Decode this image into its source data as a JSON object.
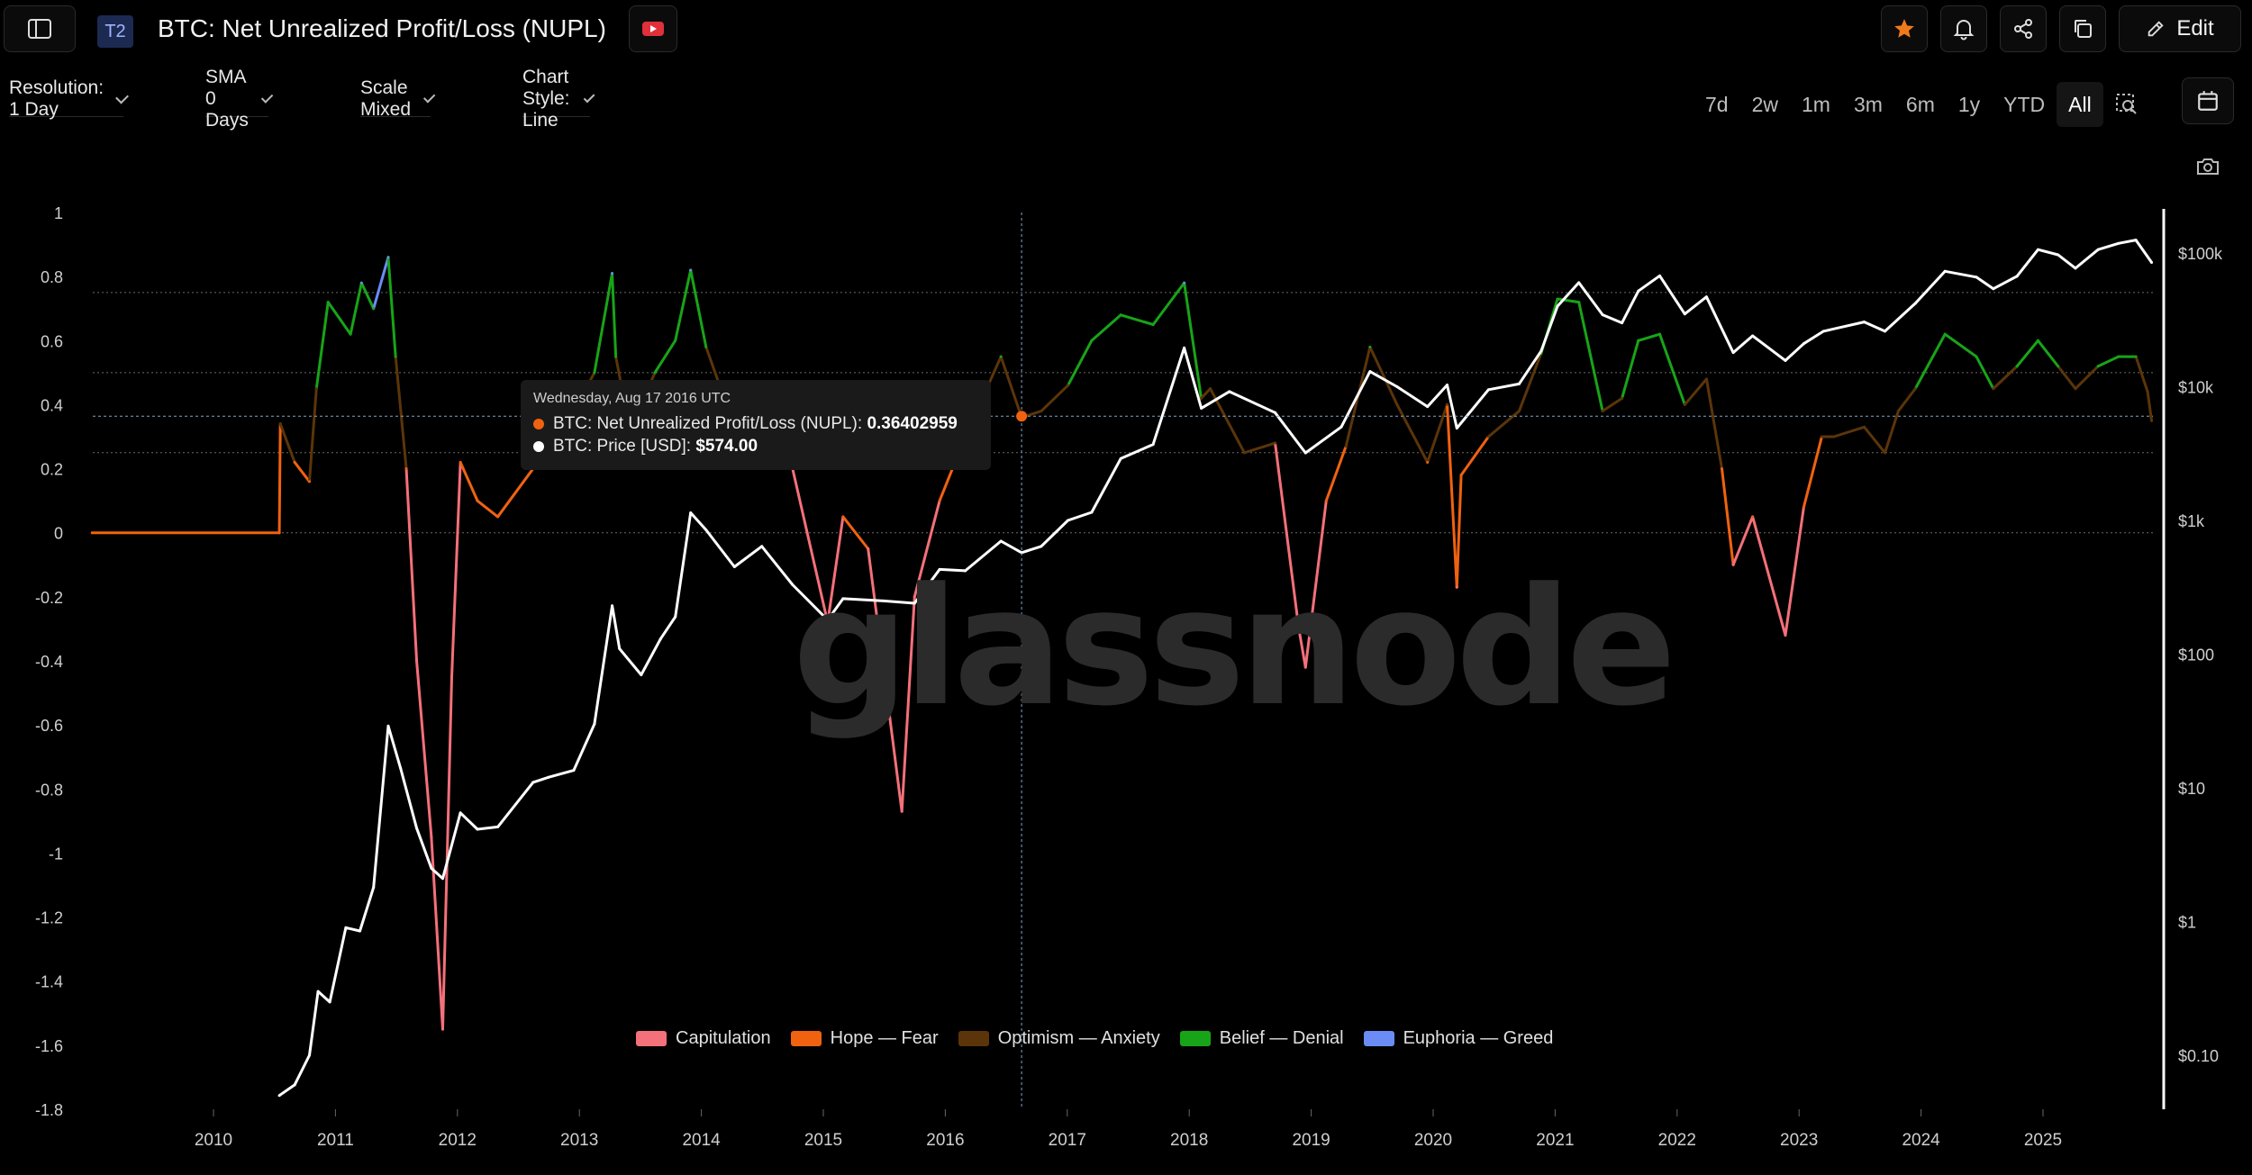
{
  "header": {
    "badge": "T2",
    "title": "BTC: Net Unrealized Profit/Loss (NUPL)",
    "edit_label": "Edit"
  },
  "controls": {
    "resolution": "Resolution: 1 Day",
    "sma": "SMA 0 Days",
    "scale": "Scale Mixed",
    "chart_style": "Chart Style: Line"
  },
  "ranges": [
    "7d",
    "2w",
    "1m",
    "3m",
    "6m",
    "1y",
    "YTD",
    "All"
  ],
  "active_range": "All",
  "watermark": "glassnode",
  "tooltip": {
    "date": "Wednesday, Aug 17 2016 UTC",
    "series1_label": "BTC: Net Unrealized Profit/Loss (NUPL): ",
    "series1_value": "0.36402959",
    "series2_label": "BTC: Price [USD]: ",
    "series2_value": "$574.00"
  },
  "colors": {
    "capitulation": "#f4707a",
    "hope_fear": "#f0620f",
    "optimism_anxiety": "#5b3509",
    "belief_denial": "#18a418",
    "euphoria_greed": "#6b8cf5",
    "price": "#ffffff"
  },
  "chart_data": {
    "type": "line",
    "left_axis": {
      "ticks": [
        1,
        0.8,
        0.6,
        0.4,
        0.2,
        0,
        -0.2,
        -0.4,
        -0.6,
        -0.8,
        -1,
        -1.2,
        -1.4,
        -1.6,
        -1.8
      ],
      "ylim": [
        -1.8,
        1
      ]
    },
    "right_axis": {
      "scale": "log",
      "ticks": [
        "$100k",
        "$10k",
        "$1k",
        "$100",
        "$10",
        "$1",
        "$0.10"
      ],
      "tick_values": [
        100000,
        10000,
        1000,
        100,
        10,
        1,
        0.1
      ]
    },
    "x_ticks": [
      "2010",
      "2011",
      "2012",
      "2013",
      "2014",
      "2015",
      "2016",
      "2017",
      "2018",
      "2019",
      "2020",
      "2021",
      "2022",
      "2023",
      "2024",
      "2025"
    ],
    "legend": [
      "Capitulation",
      "Hope — Fear",
      "Optimism — Anxiety",
      "Belief — Denial",
      "Euphoria — Greed"
    ],
    "zones": [
      {
        "name": "Capitulation",
        "range": [
          -1.8,
          0
        ]
      },
      {
        "name": "Hope — Fear",
        "range": [
          0,
          0.25
        ]
      },
      {
        "name": "Optimism — Anxiety",
        "range": [
          0.25,
          0.5
        ]
      },
      {
        "name": "Belief — Denial",
        "range": [
          0.5,
          0.75
        ]
      },
      {
        "name": "Euphoria — Greed",
        "range": [
          0.75,
          1
        ]
      }
    ],
    "series": [
      {
        "name": "BTC: Net Unrealized Profit/Loss (NUPL)",
        "x": [
          "2009-01-03",
          "2010-07-17",
          "2010-07-20",
          "2010-09-01",
          "2010-10-15",
          "2010-11-05",
          "2010-12-10",
          "2011-02-15",
          "2011-03-20",
          "2011-04-25",
          "2011-06-08",
          "2011-06-30",
          "2011-08-01",
          "2011-09-01",
          "2011-10-15",
          "2011-11-18",
          "2011-12-15",
          "2012-01-10",
          "2012-03-01",
          "2012-05-01",
          "2012-08-15",
          "2012-10-01",
          "2012-12-15",
          "2013-02-15",
          "2013-04-09",
          "2013-04-20",
          "2013-06-01",
          "2013-08-15",
          "2013-10-15",
          "2013-11-30",
          "2014-01-15",
          "2014-04-10",
          "2014-07-01",
          "2014-10-01",
          "2015-01-14",
          "2015-03-01",
          "2015-05-15",
          "2015-08-24",
          "2015-10-01",
          "2015-12-15",
          "2016-03-01",
          "2016-06-16",
          "2016-08-17",
          "2016-10-15",
          "2017-01-03",
          "2017-03-15",
          "2017-06-10",
          "2017-09-15",
          "2017-12-17",
          "2018-02-06",
          "2018-03-05",
          "2018-06-15",
          "2018-09-15",
          "2018-11-25",
          "2018-12-15",
          "2019-02-15",
          "2019-04-15",
          "2019-06-26",
          "2019-09-15",
          "2019-12-15",
          "2020-02-12",
          "2020-03-12",
          "2020-03-25",
          "2020-06-15",
          "2020-09-15",
          "2020-11-20",
          "2021-01-08",
          "2021-03-13",
          "2021-05-23",
          "2021-07-20",
          "2021-09-07",
          "2021-11-10",
          "2022-01-24",
          "2022-03-30",
          "2022-05-15",
          "2022-06-18",
          "2022-08-15",
          "2022-11-21",
          "2023-01-15",
          "2023-03-10",
          "2023-04-15",
          "2023-07-15",
          "2023-09-15",
          "2023-10-25",
          "2023-12-15",
          "2024-03-13",
          "2024-06-15",
          "2024-08-05",
          "2024-10-15",
          "2024-12-17",
          "2025-02-15",
          "2025-04-08",
          "2025-06-15",
          "2025-08-15",
          "2025-10-06",
          "2025-11-10",
          "2025-11-22"
        ],
        "values": [
          0,
          0,
          0.34,
          0.22,
          0.16,
          0.45,
          0.72,
          0.62,
          0.78,
          0.7,
          0.86,
          0.55,
          0.2,
          -0.4,
          -0.95,
          -1.55,
          -0.45,
          0.22,
          0.1,
          0.05,
          0.2,
          0.28,
          0.38,
          0.5,
          0.81,
          0.55,
          0.32,
          0.5,
          0.6,
          0.82,
          0.58,
          0.33,
          0.45,
          0.2,
          -0.28,
          0.05,
          -0.05,
          -0.87,
          -0.2,
          0.1,
          0.3,
          0.55,
          0.36,
          0.38,
          0.46,
          0.6,
          0.68,
          0.65,
          0.78,
          0.42,
          0.45,
          0.25,
          0.28,
          -0.3,
          -0.42,
          0.1,
          0.27,
          0.58,
          0.4,
          0.22,
          0.4,
          -0.17,
          0.18,
          0.3,
          0.38,
          0.56,
          0.73,
          0.72,
          0.38,
          0.42,
          0.6,
          0.62,
          0.4,
          0.48,
          0.2,
          -0.1,
          0.05,
          -0.32,
          0.08,
          0.3,
          0.3,
          0.33,
          0.25,
          0.38,
          0.45,
          0.62,
          0.55,
          0.45,
          0.52,
          0.6,
          0.52,
          0.45,
          0.52,
          0.55,
          0.55,
          0.44,
          0.35
        ]
      },
      {
        "name": "BTC: Price [USD]",
        "x": [
          "2010-07-17",
          "2010-09-01",
          "2010-10-15",
          "2010-11-10",
          "2010-12-15",
          "2011-02-01",
          "2011-03-15",
          "2011-04-25",
          "2011-06-08",
          "2011-07-15",
          "2011-09-01",
          "2011-10-15",
          "2011-11-18",
          "2012-01-10",
          "2012-03-01",
          "2012-05-01",
          "2012-08-15",
          "2012-10-01",
          "2012-12-15",
          "2013-02-15",
          "2013-04-09",
          "2013-05-01",
          "2013-07-05",
          "2013-09-01",
          "2013-10-15",
          "2013-11-30",
          "2014-01-15",
          "2014-04-10",
          "2014-07-01",
          "2014-10-01",
          "2015-01-14",
          "2015-03-01",
          "2015-07-01",
          "2015-10-01",
          "2015-12-15",
          "2016-03-01",
          "2016-06-16",
          "2016-08-17",
          "2016-10-15",
          "2017-01-03",
          "2017-03-15",
          "2017-06-10",
          "2017-09-15",
          "2017-12-17",
          "2018-02-06",
          "2018-05-01",
          "2018-09-15",
          "2018-12-15",
          "2019-04-01",
          "2019-06-26",
          "2019-09-15",
          "2019-12-15",
          "2020-02-12",
          "2020-03-12",
          "2020-06-15",
          "2020-09-15",
          "2020-11-20",
          "2021-01-08",
          "2021-03-13",
          "2021-05-23",
          "2021-07-20",
          "2021-09-07",
          "2021-11-10",
          "2022-01-24",
          "2022-03-30",
          "2022-06-18",
          "2022-08-15",
          "2022-11-21",
          "2023-01-15",
          "2023-03-15",
          "2023-07-15",
          "2023-09-15",
          "2023-12-15",
          "2024-03-13",
          "2024-06-15",
          "2024-08-05",
          "2024-10-15",
          "2024-12-17",
          "2025-02-15",
          "2025-04-08",
          "2025-06-15",
          "2025-08-15",
          "2025-10-06",
          "2025-11-22"
        ],
        "values": [
          0.05,
          0.06,
          0.1,
          0.3,
          0.25,
          0.9,
          0.85,
          1.8,
          29,
          14,
          5,
          2.5,
          2.1,
          6.5,
          4.9,
          5.1,
          11,
          12,
          13.5,
          30,
          230,
          110,
          70,
          130,
          190,
          1140,
          850,
          450,
          640,
          330,
          180,
          260,
          250,
          240,
          430,
          420,
          700,
          574,
          640,
          1000,
          1150,
          2900,
          3700,
          19500,
          6900,
          9200,
          6400,
          3200,
          5000,
          13000,
          10000,
          7100,
          10300,
          4900,
          9500,
          10500,
          18500,
          40000,
          60000,
          34500,
          30000,
          52000,
          67500,
          35000,
          47000,
          18000,
          24000,
          15700,
          21000,
          26000,
          30500,
          26000,
          42000,
          73000,
          66000,
          54000,
          67000,
          106000,
          97000,
          77000,
          106000,
          118000,
          125000,
          85000
        ]
      }
    ],
    "cursor": {
      "x": "2016-08-17",
      "nupl": 0.36402959,
      "price": 574
    }
  }
}
